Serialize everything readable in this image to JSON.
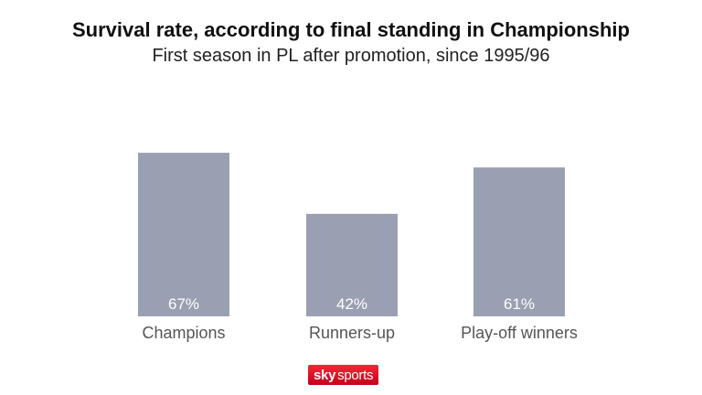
{
  "chart_data": {
    "type": "bar",
    "title": "Survival rate, according to final standing in Championship",
    "subtitle": "First season in PL after promotion, since 1995/96",
    "categories": [
      "Champions",
      "Runners-up",
      "Play-off winners"
    ],
    "values": [
      67,
      42,
      61
    ],
    "value_labels": [
      "67%",
      "42%",
      "61%"
    ],
    "ylim": [
      0,
      100
    ],
    "grid": false,
    "xlabel": "",
    "ylabel": "",
    "bar_color": "#9a9fb2",
    "value_label_color": "#ffffff",
    "category_label_color": "#555555"
  },
  "branding": {
    "logo_text_sky": "sky",
    "logo_text_sports": "sports",
    "logo_color": "#e10a1e"
  }
}
